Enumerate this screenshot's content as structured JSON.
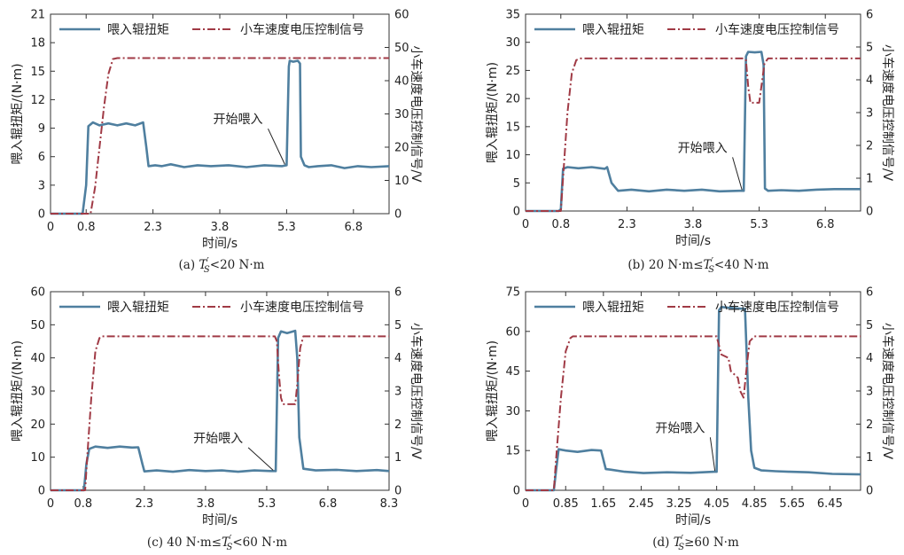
{
  "figure": {
    "torque_color": "#4f7f9f",
    "voltage_color": "#a03a45"
  },
  "chart_data": [
    {
      "id": "a",
      "type": "line",
      "caption": "(a) T′S<20 N·m",
      "caption_parts": [
        "(a) ",
        "T",
        "′",
        "S",
        "<20 N·m"
      ],
      "xlabel": "时间/s",
      "ylabel_left": "喂入辊扭矩/(N·m)",
      "ylabel_right": "小车速度电压控制信号/V",
      "xlim": [
        0,
        7.6
      ],
      "xticks": [
        0,
        0.8,
        2.3,
        3.8,
        5.3,
        6.8
      ],
      "xtick_labels": [
        "0",
        "0.8",
        "2.3",
        "3.8",
        "5.3",
        "6.8"
      ],
      "ylim_left": [
        0,
        21
      ],
      "yticks_left": [
        0,
        3,
        6,
        9,
        12,
        15,
        18,
        21
      ],
      "ylim_right": [
        0,
        60
      ],
      "yticks_right": [
        0,
        10,
        20,
        30,
        40,
        50,
        60
      ],
      "legend_position": "top",
      "annotation": {
        "text": "开始喂入",
        "x": 5.3,
        "y_left": 5.1,
        "text_x": 3.65,
        "text_y_left": 9.5
      },
      "series": [
        {
          "name": "喂入辊扭矩",
          "axis": "left",
          "style": "solid",
          "x": [
            0,
            0.72,
            0.8,
            0.85,
            0.95,
            1.1,
            1.3,
            1.5,
            1.7,
            1.9,
            2.08,
            2.15,
            2.2,
            2.35,
            2.5,
            2.7,
            3.0,
            3.3,
            3.6,
            4.0,
            4.4,
            4.8,
            5.2,
            5.3,
            5.35,
            5.37,
            5.45,
            5.55,
            5.6,
            5.62,
            5.7,
            5.8,
            6.0,
            6.3,
            6.6,
            6.9,
            7.2,
            7.6
          ],
          "values": [
            0,
            0,
            3,
            9.2,
            9.6,
            9.3,
            9.5,
            9.3,
            9.5,
            9.3,
            9.6,
            7,
            5,
            5.1,
            5.0,
            5.2,
            4.9,
            5.1,
            5.0,
            5.1,
            4.9,
            5.1,
            5.0,
            5.1,
            15.5,
            16.1,
            16.0,
            16.1,
            15.8,
            6,
            5.1,
            4.9,
            5.0,
            5.1,
            4.8,
            5.0,
            4.9,
            5.0
          ]
        },
        {
          "name": "小车速度电压控制信号",
          "axis": "right",
          "style": "dashdot",
          "x": [
            0,
            0.9,
            1.0,
            1.1,
            1.2,
            1.3,
            1.4,
            1.5,
            7.6
          ],
          "values": [
            0,
            0,
            8,
            20,
            32,
            42,
            46.5,
            46.8,
            46.8
          ]
        }
      ]
    },
    {
      "id": "b",
      "type": "line",
      "caption": "(b) 20 N·m≤T′S<40 N·m",
      "caption_parts": [
        "(b) 20 N·m≤",
        "T",
        "′",
        "S",
        "<40 N·m"
      ],
      "xlabel": "时间/s",
      "ylabel_left": "喂入辊扭矩/(N·m)",
      "ylabel_right": "小车速度电压控制信号/V",
      "xlim": [
        0,
        7.6
      ],
      "xticks": [
        0,
        0.8,
        2.3,
        3.8,
        5.3,
        6.8
      ],
      "xtick_labels": [
        "0",
        "0.8",
        "2.3",
        "3.8",
        "5.3",
        "6.8"
      ],
      "ylim_left": [
        0,
        35
      ],
      "yticks_left": [
        0,
        5,
        10,
        15,
        20,
        25,
        30,
        35
      ],
      "ylim_right": [
        0,
        6
      ],
      "yticks_right": [
        0,
        1,
        2,
        3,
        4,
        5,
        6
      ],
      "legend_position": "top",
      "annotation": {
        "text": "开始喂入",
        "x": 4.95,
        "y_left": 3.6,
        "text_x": 3.45,
        "text_y_left": 10.5
      },
      "series": [
        {
          "name": "喂入辊扭矩",
          "axis": "left",
          "style": "solid",
          "x": [
            0,
            0.75,
            0.8,
            0.85,
            0.95,
            1.2,
            1.5,
            1.8,
            1.85,
            1.95,
            2.1,
            2.4,
            2.8,
            3.2,
            3.6,
            4.0,
            4.4,
            4.85,
            4.95,
            5.0,
            5.05,
            5.2,
            5.35,
            5.4,
            5.43,
            5.5,
            5.8,
            6.2,
            6.6,
            7.0,
            7.6
          ],
          "values": [
            0,
            0,
            0.3,
            7.5,
            7.8,
            7.6,
            7.8,
            7.5,
            7.8,
            5,
            3.6,
            3.8,
            3.5,
            3.8,
            3.6,
            3.8,
            3.5,
            3.6,
            3.6,
            27.5,
            28.3,
            28.2,
            28.3,
            26,
            4,
            3.6,
            3.7,
            3.6,
            3.8,
            3.9,
            3.9
          ]
        },
        {
          "name": "小车速度电压控制信号",
          "axis": "right",
          "style": "dashdot",
          "x": [
            0,
            0.8,
            0.85,
            0.95,
            1.05,
            1.15,
            1.25,
            4.95,
            5.0,
            5.05,
            5.1,
            5.3,
            5.35,
            5.42,
            5.5,
            7.6
          ],
          "values": [
            0,
            0,
            1.0,
            3.0,
            4.2,
            4.6,
            4.65,
            4.65,
            4.6,
            3.8,
            3.3,
            3.3,
            3.8,
            4.5,
            4.65,
            4.65
          ]
        }
      ]
    },
    {
      "id": "c",
      "type": "line",
      "caption": "(c) 40 N·m≤T′S<60 N·m",
      "caption_parts": [
        "(c) 40 N·m≤",
        "T",
        "′",
        "S",
        "<60 N·m"
      ],
      "xlabel": "时间/s",
      "ylabel_left": "喂入辊扭矩/(N·m)",
      "ylabel_right": "小车速度电压控制信号/V",
      "xlim": [
        0,
        8.3
      ],
      "xticks": [
        0,
        0.8,
        2.3,
        3.8,
        5.3,
        6.8,
        8.3
      ],
      "xtick_labels": [
        "0",
        "0.8",
        "2.3",
        "3.8",
        "5.3",
        "6.8",
        "8.3"
      ],
      "ylim_left": [
        0,
        60
      ],
      "yticks_left": [
        0,
        10,
        20,
        30,
        40,
        50,
        60
      ],
      "ylim_right": [
        0,
        6
      ],
      "yticks_right": [
        0,
        1,
        2,
        3,
        4,
        5,
        6
      ],
      "legend_position": "top",
      "annotation": {
        "text": "开始喂入",
        "x": 5.5,
        "y_left": 5.8,
        "text_x": 3.5,
        "text_y_left": 14.5
      },
      "series": [
        {
          "name": "喂入辊扭矩",
          "axis": "left",
          "style": "solid",
          "x": [
            0,
            0.82,
            0.88,
            0.95,
            1.1,
            1.4,
            1.7,
            2.0,
            2.15,
            2.25,
            2.3,
            2.6,
            3.0,
            3.4,
            3.8,
            4.2,
            4.6,
            5.0,
            5.4,
            5.52,
            5.58,
            5.65,
            5.8,
            6.0,
            6.05,
            6.1,
            6.2,
            6.5,
            7.0,
            7.5,
            8.0,
            8.3
          ],
          "values": [
            0,
            0,
            8,
            12.5,
            13.2,
            12.8,
            13.2,
            12.9,
            13,
            8,
            5.7,
            6.0,
            5.6,
            6.1,
            5.8,
            6.0,
            5.6,
            6.0,
            5.8,
            5.8,
            46,
            48,
            47.5,
            48.2,
            40,
            16,
            6.5,
            6.0,
            6.2,
            5.8,
            6.1,
            5.8
          ]
        },
        {
          "name": "小车速度电压控制信号",
          "axis": "right",
          "style": "dashdot",
          "x": [
            0,
            0.85,
            0.9,
            1.0,
            1.1,
            1.2,
            1.25,
            5.5,
            5.55,
            5.6,
            5.65,
            5.7,
            6.0,
            6.05,
            6.12,
            6.2,
            8.3
          ],
          "values": [
            0,
            0,
            1.0,
            2.8,
            4.2,
            4.6,
            4.65,
            4.65,
            4.5,
            3.5,
            2.8,
            2.6,
            2.6,
            3.2,
            4.3,
            4.65,
            4.65
          ]
        }
      ]
    },
    {
      "id": "d",
      "type": "line",
      "caption": "(d) T′S≥60 N·m",
      "caption_parts": [
        "(d) ",
        "T",
        "′",
        "S",
        "≥60 N·m"
      ],
      "xlabel": "时间/s",
      "ylabel_left": "喂入辊扭矩/(N·m)",
      "ylabel_right": "小车速度电压控制信号/V",
      "xlim": [
        0,
        7.1
      ],
      "xticks": [
        0.85,
        1.65,
        2.45,
        3.25,
        4.05,
        4.85,
        5.65,
        6.45
      ],
      "xtick_labels": [
        "0.85",
        "1.65",
        "2.45",
        "3.25",
        "4.05",
        "4.85",
        "5.65",
        "6.45"
      ],
      "origin_label": "0",
      "ylim_left": [
        0,
        75
      ],
      "yticks_left": [
        0,
        15,
        30,
        45,
        60,
        75
      ],
      "ylim_right": [
        0,
        6
      ],
      "yticks_right": [
        0,
        1,
        2,
        3,
        4,
        5,
        6
      ],
      "legend_position": "top",
      "annotation": {
        "text": "开始喂入",
        "x": 4.05,
        "y_left": 7,
        "text_x": 2.75,
        "text_y_left": 22
      },
      "series": [
        {
          "name": "喂入辊扭矩",
          "axis": "left",
          "style": "solid",
          "x": [
            0,
            0.6,
            0.65,
            0.7,
            0.85,
            1.1,
            1.4,
            1.6,
            1.7,
            1.8,
            2.1,
            2.5,
            3.0,
            3.5,
            4.0,
            4.05,
            4.1,
            4.15,
            4.4,
            4.65,
            4.72,
            4.78,
            4.85,
            5.0,
            5.3,
            5.6,
            6.0,
            6.5,
            7.1
          ],
          "values": [
            0,
            0,
            8,
            15.5,
            15,
            14.5,
            15.2,
            15,
            8,
            7.8,
            7,
            6.5,
            6.8,
            6.6,
            7,
            7,
            68,
            69.2,
            68.8,
            68.5,
            35,
            15,
            8.5,
            7.5,
            7.2,
            7,
            6.8,
            6.2,
            6.0
          ]
        },
        {
          "name": "小车速度电压控制信号",
          "axis": "right",
          "style": "dashdot",
          "x": [
            0,
            0.6,
            0.65,
            0.75,
            0.85,
            0.95,
            1.0,
            4.05,
            4.15,
            4.3,
            4.35,
            4.5,
            4.55,
            4.62,
            4.7,
            4.75,
            4.85,
            7.1
          ],
          "values": [
            0,
            0,
            1.0,
            2.8,
            4.2,
            4.6,
            4.65,
            4.65,
            4.1,
            4.0,
            3.6,
            3.4,
            3.0,
            2.8,
            3.9,
            4.5,
            4.65,
            4.65
          ]
        }
      ]
    }
  ]
}
